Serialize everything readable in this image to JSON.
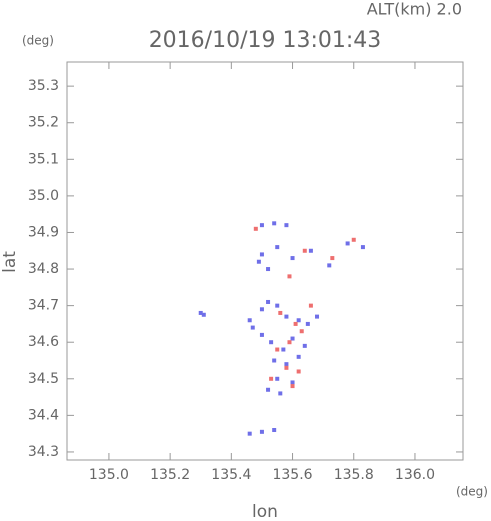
{
  "chart_data": {
    "type": "scatter",
    "title": "2016/10/19 13:01:43",
    "subtitle": "ALT(km) 2.0",
    "x_label": "lon",
    "y_label": "lat",
    "x_unit": "(deg)",
    "y_unit": "(deg)",
    "xlim": [
      134.863,
      136.157
    ],
    "ylim": [
      34.278,
      35.366
    ],
    "xticks": [
      {
        "value": 135,
        "label": "135.0"
      },
      135.2,
      135.4,
      135.6,
      135.8,
      {
        "value": 136,
        "label": "136.0"
      }
    ],
    "yticks": [
      34.3,
      34.4,
      34.5,
      34.6,
      34.7,
      34.8,
      34.9,
      {
        "value": 35,
        "label": "35.0"
      },
      35.1,
      35.2,
      35.3
    ],
    "series": [
      {
        "color": "#6f6fe8",
        "x": [
          135.3,
          135.31,
          135.46,
          135.5,
          135.52,
          135.55,
          135.58,
          135.62,
          135.65,
          135.68,
          135.5,
          135.53,
          135.57,
          135.6,
          135.64,
          135.54,
          135.58,
          135.62,
          135.55,
          135.6,
          135.52,
          135.56,
          135.5,
          135.55,
          135.6,
          135.66,
          135.72,
          135.78,
          135.83,
          135.5,
          135.54,
          135.58,
          135.46,
          135.5,
          135.54,
          135.52,
          135.49,
          135.47
        ],
        "y": [
          34.68,
          34.675,
          34.66,
          34.69,
          34.71,
          34.7,
          34.67,
          34.66,
          34.65,
          34.67,
          34.62,
          34.6,
          34.58,
          34.61,
          34.59,
          34.55,
          34.54,
          34.56,
          34.5,
          34.49,
          34.47,
          34.46,
          34.84,
          34.86,
          34.83,
          34.85,
          34.81,
          34.87,
          34.86,
          34.92,
          34.925,
          34.92,
          34.35,
          34.355,
          34.36,
          34.8,
          34.82,
          34.64
        ]
      },
      {
        "color": "#ee6f6f",
        "x": [
          135.56,
          135.61,
          135.63,
          135.59,
          135.55,
          135.58,
          135.62,
          135.53,
          135.6,
          135.64,
          135.73,
          135.8,
          135.59,
          135.48,
          135.66
        ],
        "y": [
          34.68,
          34.65,
          34.63,
          34.6,
          34.58,
          34.53,
          34.52,
          34.5,
          34.48,
          34.85,
          34.83,
          34.88,
          34.78,
          34.91,
          34.7
        ]
      }
    ]
  }
}
